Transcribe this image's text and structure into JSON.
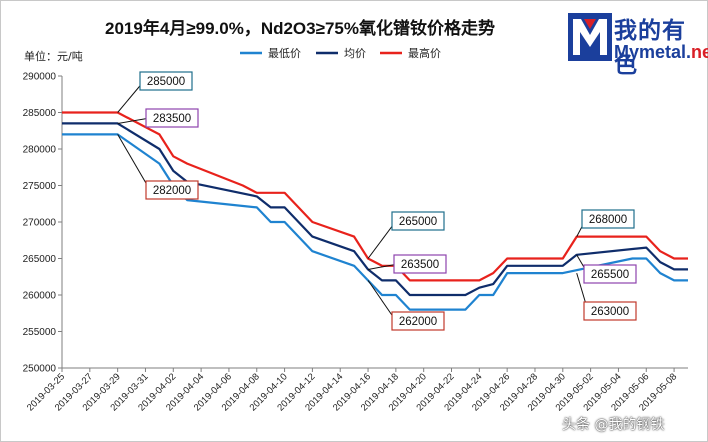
{
  "header": {
    "title": "2019年4月≥99.0%，Nd2O3≥75%氧化镨钕价格走势",
    "unit": "单位：元/吨"
  },
  "logo": {
    "cn_text": "我的有色",
    "en_main": "Mymetal.",
    "en_accent": "net",
    "colors": {
      "primary": "#1b3f9c",
      "accent": "#d92027"
    }
  },
  "watermark": "头条 @我的钢铁",
  "chart_data": {
    "type": "line",
    "title": "2019年4月≥99.0%，Nd2O3≥75%氧化镨钕价格走势",
    "ylabel": "单位：元/吨",
    "ylim": [
      250000,
      290000
    ],
    "ytick_step": 5000,
    "ytick_labels": [
      "250000",
      "255000",
      "260000",
      "265000",
      "270000",
      "275000",
      "280000",
      "285000",
      "290000"
    ],
    "x_start": "2019-03-25",
    "x_end": "2019-05-08",
    "xtick_labels": [
      "2019-03-25",
      "2019-03-27",
      "2019-03-29",
      "2019-03-31",
      "2019-04-02",
      "2019-04-04",
      "2019-04-06",
      "2019-04-08",
      "2019-04-10",
      "2019-04-12",
      "2019-04-14",
      "2019-04-16",
      "2019-04-18",
      "2019-04-20",
      "2019-04-22",
      "2019-04-24",
      "2019-04-26",
      "2019-04-28",
      "2019-04-30",
      "2019-05-02",
      "2019-05-04",
      "2019-05-06",
      "2019-05-08"
    ],
    "grid": false,
    "legend_position": "top",
    "series": [
      {
        "name": "最低价",
        "color": "#1f83d0",
        "points": [
          {
            "x": "2019-03-25",
            "y": 282000
          },
          {
            "x": "2019-03-29",
            "y": 282000
          },
          {
            "x": "2019-04-01",
            "y": 278000
          },
          {
            "x": "2019-04-02",
            "y": 275000
          },
          {
            "x": "2019-04-03",
            "y": 273000
          },
          {
            "x": "2019-04-08",
            "y": 272000
          },
          {
            "x": "2019-04-09",
            "y": 270000
          },
          {
            "x": "2019-04-10",
            "y": 270000
          },
          {
            "x": "2019-04-12",
            "y": 266000
          },
          {
            "x": "2019-04-15",
            "y": 264000
          },
          {
            "x": "2019-04-16",
            "y": 262000
          },
          {
            "x": "2019-04-17",
            "y": 260000
          },
          {
            "x": "2019-04-18",
            "y": 260000
          },
          {
            "x": "2019-04-19",
            "y": 258000
          },
          {
            "x": "2019-04-23",
            "y": 258000
          },
          {
            "x": "2019-04-24",
            "y": 260000
          },
          {
            "x": "2019-04-25",
            "y": 260000
          },
          {
            "x": "2019-04-26",
            "y": 263000
          },
          {
            "x": "2019-04-30",
            "y": 263000
          },
          {
            "x": "2019-05-05",
            "y": 265000
          },
          {
            "x": "2019-05-06",
            "y": 265000
          },
          {
            "x": "2019-05-07",
            "y": 263000
          },
          {
            "x": "2019-05-08",
            "y": 262000
          },
          {
            "x": "2019-05-09",
            "y": 262000
          }
        ]
      },
      {
        "name": "均价",
        "color": "#0f2d6b",
        "points": [
          {
            "x": "2019-03-25",
            "y": 283500
          },
          {
            "x": "2019-03-29",
            "y": 283500
          },
          {
            "x": "2019-04-01",
            "y": 280000
          },
          {
            "x": "2019-04-02",
            "y": 277000
          },
          {
            "x": "2019-04-03",
            "y": 275500
          },
          {
            "x": "2019-04-08",
            "y": 273500
          },
          {
            "x": "2019-04-09",
            "y": 272000
          },
          {
            "x": "2019-04-10",
            "y": 272000
          },
          {
            "x": "2019-04-12",
            "y": 268000
          },
          {
            "x": "2019-04-15",
            "y": 266000
          },
          {
            "x": "2019-04-16",
            "y": 263500
          },
          {
            "x": "2019-04-17",
            "y": 262000
          },
          {
            "x": "2019-04-18",
            "y": 262000
          },
          {
            "x": "2019-04-19",
            "y": 260000
          },
          {
            "x": "2019-04-23",
            "y": 260000
          },
          {
            "x": "2019-04-24",
            "y": 261000
          },
          {
            "x": "2019-04-25",
            "y": 261500
          },
          {
            "x": "2019-04-26",
            "y": 264000
          },
          {
            "x": "2019-04-30",
            "y": 264000
          },
          {
            "x": "2019-05-01",
            "y": 265500
          },
          {
            "x": "2019-05-06",
            "y": 266500
          },
          {
            "x": "2019-05-07",
            "y": 264500
          },
          {
            "x": "2019-05-08",
            "y": 263500
          },
          {
            "x": "2019-05-09",
            "y": 263500
          }
        ]
      },
      {
        "name": "最高价",
        "color": "#e8221c",
        "points": [
          {
            "x": "2019-03-25",
            "y": 285000
          },
          {
            "x": "2019-03-29",
            "y": 285000
          },
          {
            "x": "2019-04-01",
            "y": 282000
          },
          {
            "x": "2019-04-02",
            "y": 279000
          },
          {
            "x": "2019-04-03",
            "y": 278000
          },
          {
            "x": "2019-04-07",
            "y": 275000
          },
          {
            "x": "2019-04-08",
            "y": 274000
          },
          {
            "x": "2019-04-10",
            "y": 274000
          },
          {
            "x": "2019-04-12",
            "y": 270000
          },
          {
            "x": "2019-04-15",
            "y": 268000
          },
          {
            "x": "2019-04-16",
            "y": 265000
          },
          {
            "x": "2019-04-17",
            "y": 264000
          },
          {
            "x": "2019-04-18",
            "y": 264000
          },
          {
            "x": "2019-04-19",
            "y": 262000
          },
          {
            "x": "2019-04-24",
            "y": 262000
          },
          {
            "x": "2019-04-25",
            "y": 263000
          },
          {
            "x": "2019-04-26",
            "y": 265000
          },
          {
            "x": "2019-04-30",
            "y": 265000
          },
          {
            "x": "2019-05-01",
            "y": 268000
          },
          {
            "x": "2019-05-06",
            "y": 268000
          },
          {
            "x": "2019-05-07",
            "y": 266000
          },
          {
            "x": "2019-05-08",
            "y": 265000
          },
          {
            "x": "2019-05-09",
            "y": 265000
          }
        ]
      }
    ],
    "annotations": [
      {
        "label": "285000",
        "x": "2019-03-29",
        "y": 285000,
        "border": "#1f6f8b"
      },
      {
        "label": "283500",
        "x": "2019-03-29",
        "y": 283500,
        "border": "#8e44ad"
      },
      {
        "label": "282000",
        "x": "2019-03-29",
        "y": 282000,
        "border": "#c0392b"
      },
      {
        "label": "265000",
        "x": "2019-04-16",
        "y": 265000,
        "border": "#1f6f8b"
      },
      {
        "label": "263500",
        "x": "2019-04-16",
        "y": 263500,
        "border": "#8e44ad"
      },
      {
        "label": "262000",
        "x": "2019-04-16",
        "y": 262000,
        "border": "#c0392b"
      },
      {
        "label": "268000",
        "x": "2019-05-01",
        "y": 268000,
        "border": "#1f6f8b"
      },
      {
        "label": "265500",
        "x": "2019-05-01",
        "y": 265500,
        "border": "#8e44ad"
      },
      {
        "label": "263000",
        "x": "2019-05-01",
        "y": 263000,
        "border": "#c0392b"
      }
    ]
  }
}
